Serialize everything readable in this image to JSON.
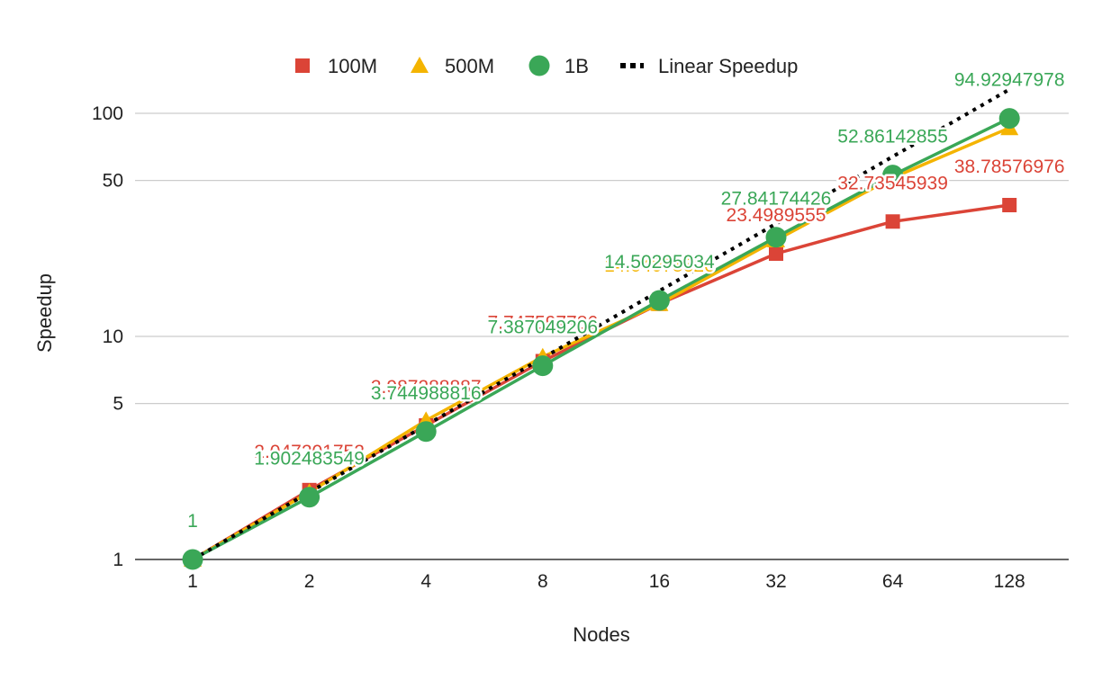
{
  "chart_data": {
    "type": "line",
    "title": "",
    "xlabel": "Nodes",
    "ylabel": "Speedup",
    "y_scale": "log",
    "ylim": [
      1,
      120
    ],
    "grid": true,
    "legend_position": "top",
    "categories": [
      "1",
      "2",
      "4",
      "8",
      "16",
      "32",
      "64",
      "128"
    ],
    "y_ticks": [
      {
        "value": 1,
        "label": "1"
      },
      {
        "value": 5,
        "label": "5"
      },
      {
        "value": 10,
        "label": "10"
      },
      {
        "value": 50,
        "label": "50"
      },
      {
        "value": 100,
        "label": "100"
      }
    ],
    "series": [
      {
        "name": "100M",
        "color": "#db4437",
        "marker": "square",
        "values": [
          1,
          2.047201752,
          3.987288887,
          7.747597786,
          14.0,
          23.4989555,
          32.73545939,
          38.78576976
        ],
        "labels": [
          "",
          "2.047201752",
          "3.987288887",
          "7.747597786",
          "",
          "23.4989555",
          "32.73545939",
          "38.78576976"
        ]
      },
      {
        "name": "500M",
        "color": "#f4b400",
        "marker": "triangle",
        "values": [
          1,
          2.0,
          4.2,
          8.1,
          14.0,
          27.0,
          51.5,
          86.0
        ],
        "labels": [
          "",
          "",
          "",
          "",
          "14.04075626",
          "",
          "",
          ""
        ]
      },
      {
        "name": "1B",
        "color": "#3aa757",
        "marker": "circle",
        "values": [
          1,
          1.902483549,
          3.744988816,
          7.387049206,
          14.50295034,
          27.84174426,
          52.86142855,
          94.92947978
        ],
        "labels": [
          "1",
          "1.902483549",
          "3.744988816",
          "7.387049206",
          "14.50295034",
          "27.84174426",
          "52.86142855",
          "94.92947978"
        ]
      },
      {
        "name": "Linear Speedup",
        "color": "#000000",
        "marker": "none",
        "dashed": true,
        "values": [
          1,
          2,
          4,
          8,
          16,
          32,
          64,
          128
        ]
      }
    ]
  }
}
